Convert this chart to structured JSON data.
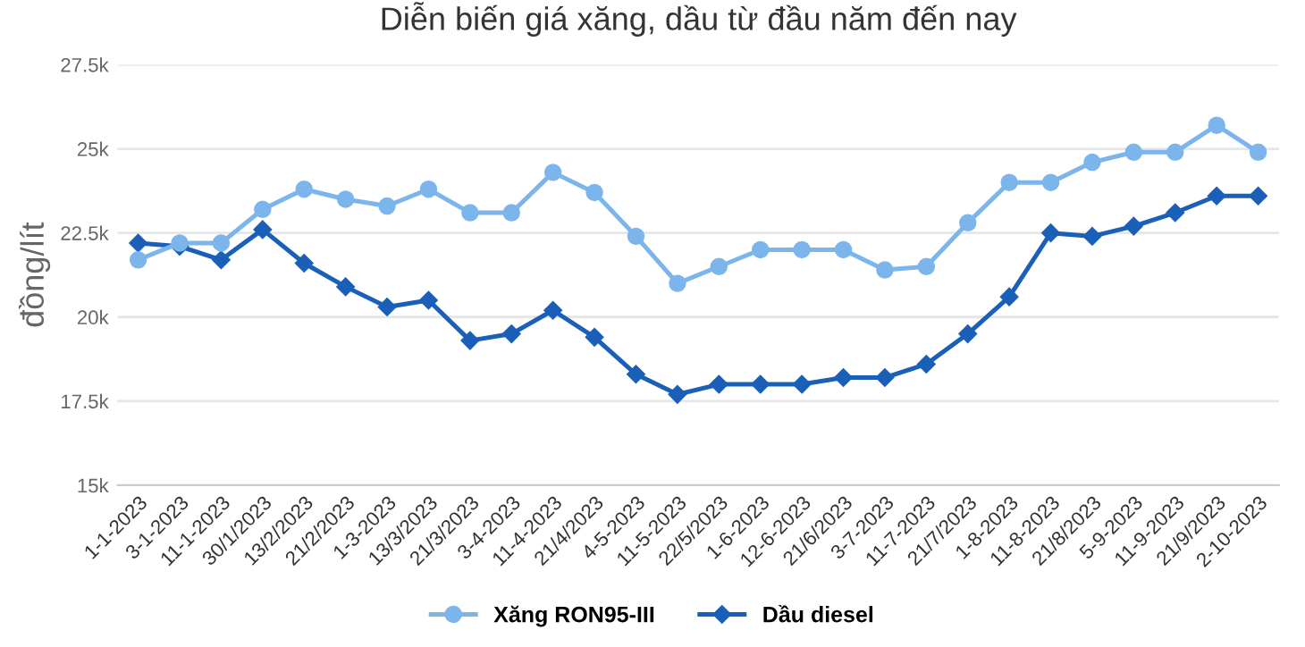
{
  "chart_data": {
    "type": "line",
    "title": "Diễn biến giá xăng, dầu từ đầu năm đến nay",
    "ylabel": "đồng/lít",
    "categories": [
      "1-1-2023",
      "3-1-2023",
      "11-1-2023",
      "30/1/2023",
      "13/2/2023",
      "21/2/2023",
      "1-3-2023",
      "13/3/2023",
      "21/3/2023",
      "3-4-2023",
      "11-4-2023",
      "21/4/2023",
      "4-5-2023",
      "11-5-2023",
      "22/5/2023",
      "1-6-2023",
      "12-6-2023",
      "21/6/2023",
      "3-7-2023",
      "11-7-2023",
      "21/7/2023",
      "1-8-2023",
      "11-8-2023",
      "21/8/2023",
      "5-9-2023",
      "11-9-2023",
      "21/9/2023",
      "2-10-2023"
    ],
    "series": [
      {
        "name": "Xăng RON95-III",
        "color": "#7cb5ec",
        "marker": "circle",
        "values": [
          21700,
          22200,
          22200,
          23200,
          23800,
          23500,
          23300,
          23800,
          23100,
          23100,
          24300,
          23700,
          22400,
          21000,
          21500,
          22000,
          22000,
          22000,
          21400,
          21500,
          22800,
          24000,
          24000,
          24600,
          24900,
          24900,
          25700,
          24900
        ]
      },
      {
        "name": "Dầu diesel",
        "color": "#1a5fb8",
        "marker": "diamond",
        "values": [
          22200,
          22100,
          21700,
          22600,
          21600,
          20900,
          20300,
          20500,
          19300,
          19500,
          20200,
          19400,
          18300,
          17700,
          18000,
          18000,
          18000,
          18200,
          18200,
          18600,
          19500,
          20600,
          22500,
          22400,
          22700,
          23100,
          23600,
          23600
        ]
      }
    ],
    "ylim": [
      15000,
      27500
    ],
    "yticks": [
      {
        "value": 15000,
        "label": "15k"
      },
      {
        "value": 17500,
        "label": "17.5k"
      },
      {
        "value": 20000,
        "label": "20k"
      },
      {
        "value": 22500,
        "label": "22.5k"
      },
      {
        "value": 25000,
        "label": "25k"
      },
      {
        "value": 27500,
        "label": "27.5k"
      }
    ],
    "grid": "y",
    "legend": "bottom",
    "line_style": "solid"
  }
}
